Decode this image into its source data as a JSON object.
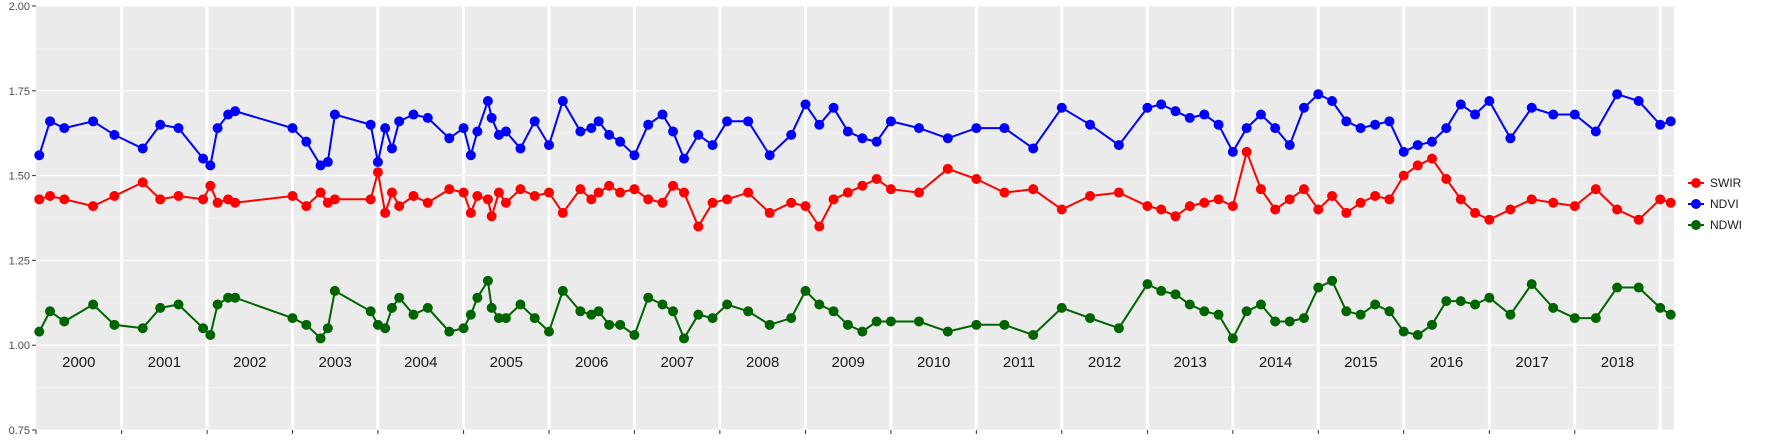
{
  "chart_data": {
    "type": "line",
    "title": "",
    "xlabel": "",
    "ylabel": "",
    "xlim": [
      "2000-01-01",
      "2019-03-01"
    ],
    "ylim": [
      0.75,
      2.0
    ],
    "yticks": [
      "0.75",
      "1.00",
      "1.25",
      "1.50",
      "1.75",
      "2.00"
    ],
    "year_labels": [
      "2000",
      "2001",
      "2002",
      "2003",
      "2004",
      "2005",
      "2006",
      "2007",
      "2008",
      "2009",
      "2010",
      "2011",
      "2012",
      "2013",
      "2014",
      "2015",
      "2016",
      "2017",
      "2018"
    ],
    "grid": true,
    "legend_position": "right",
    "colors": {
      "SWIR": "#ff0000",
      "NDVI": "#0000ff",
      "NDWI": "#006400"
    },
    "x": [
      "2000-01-15",
      "2000-03-01",
      "2000-05-01",
      "2000-09-01",
      "2000-12-01",
      "2001-04-01",
      "2001-06-15",
      "2001-09-01",
      "2001-12-15",
      "2002-01-15",
      "2002-02-15",
      "2002-04-01",
      "2002-05-01",
      "2003-01-01",
      "2003-03-01",
      "2003-05-01",
      "2003-06-01",
      "2003-07-01",
      "2003-12-01",
      "2004-01-01",
      "2004-02-01",
      "2004-03-01",
      "2004-04-01",
      "2004-06-01",
      "2004-08-01",
      "2004-11-01",
      "2005-01-01",
      "2005-02-01",
      "2005-03-01",
      "2005-04-15",
      "2005-05-01",
      "2005-06-01",
      "2005-07-01",
      "2005-09-01",
      "2005-11-01",
      "2006-01-01",
      "2006-03-01",
      "2006-05-15",
      "2006-07-01",
      "2006-08-01",
      "2006-09-15",
      "2006-11-01",
      "2007-01-01",
      "2007-03-01",
      "2007-05-01",
      "2007-06-15",
      "2007-08-01",
      "2007-10-01",
      "2007-12-01",
      "2008-02-01",
      "2008-05-01",
      "2008-08-01",
      "2008-11-01",
      "2009-01-01",
      "2009-03-01",
      "2009-05-01",
      "2009-07-01",
      "2009-09-01",
      "2009-11-01",
      "2010-01-01",
      "2010-05-01",
      "2010-09-01",
      "2011-01-01",
      "2011-05-01",
      "2011-09-01",
      "2012-01-01",
      "2012-05-01",
      "2012-09-01",
      "2013-01-01",
      "2013-03-01",
      "2013-05-01",
      "2013-07-01",
      "2013-09-01",
      "2013-11-01",
      "2014-01-01",
      "2014-03-01",
      "2014-05-01",
      "2014-07-01",
      "2014-09-01",
      "2014-11-01",
      "2015-01-01",
      "2015-03-01",
      "2015-05-01",
      "2015-07-01",
      "2015-09-01",
      "2015-11-01",
      "2016-01-01",
      "2016-03-01",
      "2016-05-01",
      "2016-07-01",
      "2016-09-01",
      "2016-11-01",
      "2017-01-01",
      "2017-04-01",
      "2017-07-01",
      "2017-10-01",
      "2018-01-01",
      "2018-04-01",
      "2018-07-01",
      "2018-10-01",
      "2019-01-01",
      "2019-02-15"
    ],
    "series": [
      {
        "name": "SWIR",
        "values": [
          1.43,
          1.44,
          1.43,
          1.41,
          1.44,
          1.48,
          1.43,
          1.44,
          1.43,
          1.47,
          1.42,
          1.43,
          1.42,
          1.44,
          1.41,
          1.45,
          1.42,
          1.43,
          1.43,
          1.51,
          1.39,
          1.45,
          1.41,
          1.44,
          1.42,
          1.46,
          1.45,
          1.39,
          1.44,
          1.43,
          1.38,
          1.45,
          1.42,
          1.46,
          1.44,
          1.45,
          1.39,
          1.46,
          1.43,
          1.45,
          1.47,
          1.45,
          1.46,
          1.43,
          1.42,
          1.47,
          1.45,
          1.35,
          1.42,
          1.43,
          1.45,
          1.39,
          1.42,
          1.41,
          1.35,
          1.43,
          1.45,
          1.47,
          1.49,
          1.46,
          1.45,
          1.52,
          1.49,
          1.45,
          1.46,
          1.4,
          1.44,
          1.45,
          1.41,
          1.4,
          1.38,
          1.41,
          1.42,
          1.43,
          1.41,
          1.57,
          1.46,
          1.4,
          1.43,
          1.46,
          1.4,
          1.44,
          1.39,
          1.42,
          1.44,
          1.43,
          1.5,
          1.53,
          1.55,
          1.49,
          1.43,
          1.39,
          1.37,
          1.4,
          1.43,
          1.42,
          1.41,
          1.46,
          1.4,
          1.37,
          1.43,
          1.42
        ]
      },
      {
        "name": "NDVI",
        "values": [
          1.56,
          1.66,
          1.64,
          1.66,
          1.62,
          1.58,
          1.65,
          1.64,
          1.55,
          1.53,
          1.64,
          1.68,
          1.69,
          1.64,
          1.6,
          1.53,
          1.54,
          1.68,
          1.65,
          1.54,
          1.64,
          1.58,
          1.66,
          1.68,
          1.67,
          1.61,
          1.64,
          1.56,
          1.63,
          1.72,
          1.67,
          1.62,
          1.63,
          1.58,
          1.66,
          1.59,
          1.72,
          1.63,
          1.64,
          1.66,
          1.62,
          1.6,
          1.56,
          1.65,
          1.68,
          1.63,
          1.55,
          1.62,
          1.59,
          1.66,
          1.66,
          1.56,
          1.62,
          1.71,
          1.65,
          1.7,
          1.63,
          1.61,
          1.6,
          1.66,
          1.64,
          1.61,
          1.64,
          1.64,
          1.58,
          1.7,
          1.65,
          1.59,
          1.7,
          1.71,
          1.69,
          1.67,
          1.68,
          1.65,
          1.57,
          1.64,
          1.68,
          1.64,
          1.59,
          1.7,
          1.74,
          1.72,
          1.66,
          1.64,
          1.65,
          1.66,
          1.57,
          1.59,
          1.6,
          1.64,
          1.71,
          1.68,
          1.72,
          1.61,
          1.7,
          1.68,
          1.68,
          1.63,
          1.74,
          1.72,
          1.65,
          1.66
        ]
      },
      {
        "name": "NDWI",
        "values": [
          1.04,
          1.1,
          1.07,
          1.12,
          1.06,
          1.05,
          1.11,
          1.12,
          1.05,
          1.03,
          1.12,
          1.14,
          1.14,
          1.08,
          1.06,
          1.02,
          1.05,
          1.16,
          1.1,
          1.06,
          1.05,
          1.11,
          1.14,
          1.09,
          1.11,
          1.04,
          1.05,
          1.09,
          1.14,
          1.19,
          1.11,
          1.08,
          1.08,
          1.12,
          1.08,
          1.04,
          1.16,
          1.1,
          1.09,
          1.1,
          1.06,
          1.06,
          1.03,
          1.14,
          1.12,
          1.1,
          1.02,
          1.09,
          1.08,
          1.12,
          1.1,
          1.06,
          1.08,
          1.16,
          1.12,
          1.1,
          1.06,
          1.04,
          1.07,
          1.07,
          1.07,
          1.04,
          1.06,
          1.06,
          1.03,
          1.11,
          1.08,
          1.05,
          1.18,
          1.16,
          1.15,
          1.12,
          1.1,
          1.09,
          1.02,
          1.1,
          1.12,
          1.07,
          1.07,
          1.08,
          1.17,
          1.19,
          1.1,
          1.09,
          1.12,
          1.1,
          1.04,
          1.03,
          1.06,
          1.13,
          1.13,
          1.12,
          1.14,
          1.09,
          1.18,
          1.11,
          1.08,
          1.08,
          1.17,
          1.17,
          1.11,
          1.09
        ]
      }
    ]
  }
}
